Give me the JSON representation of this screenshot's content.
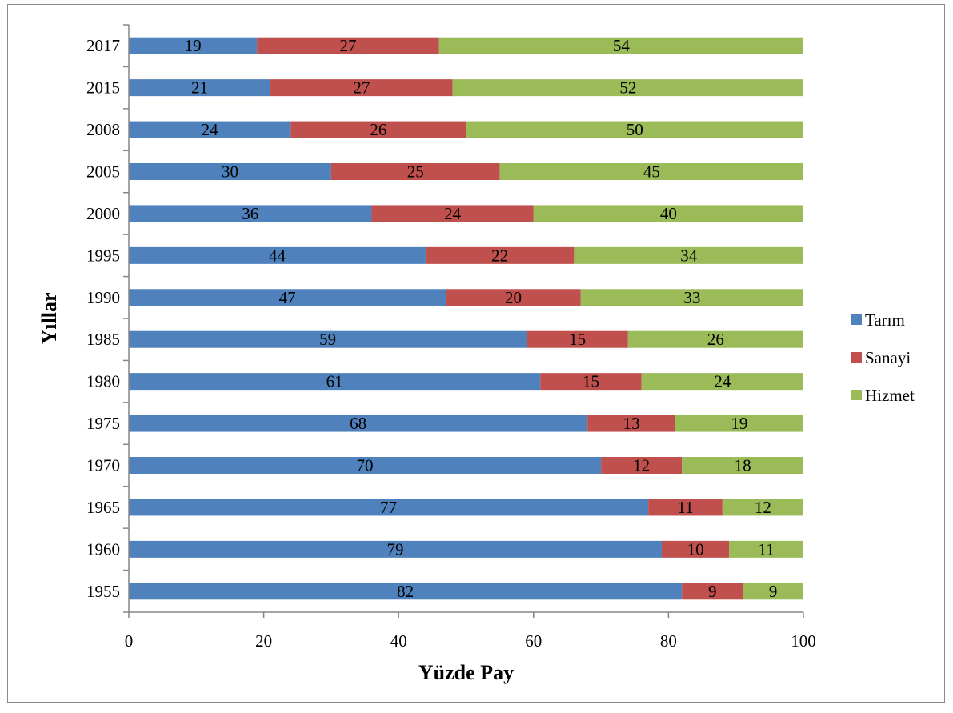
{
  "chart_data": {
    "type": "bar",
    "orientation": "horizontal",
    "stacked": true,
    "categories": [
      "2017",
      "2015",
      "2008",
      "2005",
      "2000",
      "1995",
      "1990",
      "1985",
      "1980",
      "1975",
      "1970",
      "1965",
      "1960",
      "1955"
    ],
    "series": [
      {
        "name": "Tarım",
        "color": "#4f81bd",
        "values": [
          19,
          21,
          24,
          30,
          36,
          44,
          47,
          59,
          61,
          68,
          70,
          77,
          79,
          82
        ]
      },
      {
        "name": "Sanayi",
        "color": "#c0504d",
        "values": [
          27,
          27,
          26,
          25,
          24,
          22,
          20,
          15,
          15,
          13,
          12,
          11,
          10,
          9
        ]
      },
      {
        "name": "Hizmet",
        "color": "#9bbb59",
        "values": [
          54,
          52,
          50,
          45,
          40,
          34,
          33,
          26,
          24,
          19,
          18,
          12,
          11,
          9
        ]
      }
    ],
    "xlabel": "Yüzde Pay",
    "ylabel": "Yıllar",
    "xlim": [
      0,
      100
    ],
    "xticks": [
      0,
      20,
      40,
      60,
      80,
      100
    ],
    "grid": false,
    "data_labels": true,
    "legend_position": "right"
  }
}
